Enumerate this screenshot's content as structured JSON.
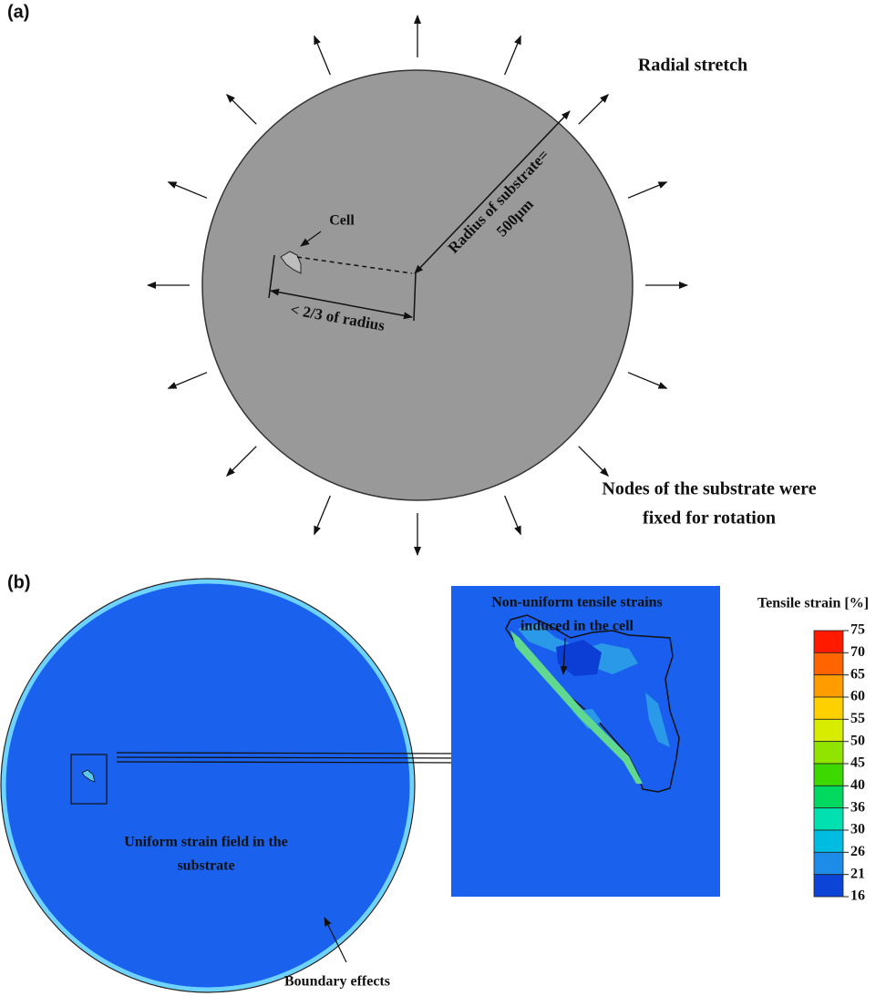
{
  "panel_a": {
    "label": "(a)",
    "radial_stretch": "Radial stretch",
    "cell": "Cell",
    "radius_line1": "Radius of substrate=",
    "radius_line2": "500μm",
    "two_thirds": "< 2/3 of radius",
    "nodes_line1": "Nodes of the substrate were",
    "nodes_line2": "fixed for rotation"
  },
  "panel_b": {
    "label": "(b)",
    "uniform_line1": "Uniform strain field in the",
    "uniform_line2": "substrate",
    "boundary": "Boundary effects",
    "nonuniform_line1": "Non-uniform tensile strains",
    "nonuniform_line2": "induced in the cell"
  },
  "colorbar": {
    "title": "Tensile strain [%]",
    "labels": [
      75,
      70,
      65,
      60,
      55,
      50,
      45,
      40,
      36,
      30,
      26,
      21,
      16
    ],
    "colors": [
      "#ff1a00",
      "#ff6400",
      "#ff9c00",
      "#ffd000",
      "#d8ec00",
      "#90e400",
      "#3cd800",
      "#00d860",
      "#00e0b0",
      "#00bce0",
      "#1c8ce8",
      "#0c44d8"
    ]
  }
}
